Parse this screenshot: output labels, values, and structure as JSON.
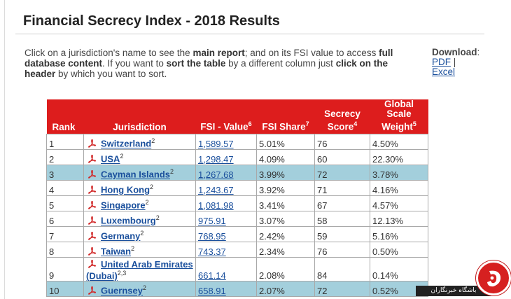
{
  "page": {
    "title": "Financial Secrecy Index - 2018 Results"
  },
  "intro": {
    "p1": "Click on a jurisdiction's name to see the ",
    "b1": "main report",
    "p2": "; and on its FSI value to access ",
    "b2": "full database content",
    "p3": ". If you want to ",
    "b3": "sort the table",
    "p4": " by a different column just ",
    "b4": "click on the header",
    "p5": " by which you want to sort."
  },
  "download": {
    "label": "Download",
    "pdf": "PDF",
    "sep": "|",
    "excel": "Excel"
  },
  "table": {
    "headers": {
      "rank": "Rank",
      "jurisdiction": "Jurisdiction",
      "fsi_value": "FSI - Value",
      "fsi_value_note": "6",
      "fsi_share": "FSI Share",
      "fsi_share_note": "7",
      "secrecy_score_1": "Secrecy",
      "secrecy_score_2": "Score",
      "secrecy_score_note": "4",
      "gsw_1": "Global",
      "gsw_2": "Scale",
      "gsw_3": "Weight",
      "gsw_note": "5"
    },
    "rows": [
      {
        "rank": "1",
        "name": "Switzerland",
        "note": "2",
        "fsi": "1,589.57",
        "share": "5.01%",
        "score": "76",
        "weight": "4.50%"
      },
      {
        "rank": "2",
        "name": "USA",
        "note": "2",
        "fsi": "1,298.47",
        "share": "4.09%",
        "score": "60",
        "weight": "22.30%"
      },
      {
        "rank": "3",
        "name": "Cayman Islands",
        "note": "2",
        "fsi": "1,267.68",
        "share": "3.99%",
        "score": "72",
        "weight": "3.78%"
      },
      {
        "rank": "4",
        "name": "Hong Kong",
        "note": "2",
        "fsi": "1,243.67",
        "share": "3.92%",
        "score": "71",
        "weight": "4.16%"
      },
      {
        "rank": "5",
        "name": "Singapore",
        "note": "2",
        "fsi": "1,081.98",
        "share": "3.41%",
        "score": "67",
        "weight": "4.57%"
      },
      {
        "rank": "6",
        "name": "Luxembourg",
        "note": "2",
        "fsi": "975.91",
        "share": "3.07%",
        "score": "58",
        "weight": "12.13%"
      },
      {
        "rank": "7",
        "name": "Germany",
        "note": "2",
        "fsi": "768.95",
        "share": "2.42%",
        "score": "59",
        "weight": "5.16%"
      },
      {
        "rank": "8",
        "name": "Taiwan",
        "note": "2",
        "fsi": "743.37",
        "share": "2.34%",
        "score": "76",
        "weight": "0.50%"
      },
      {
        "rank": "9",
        "name_line1": "United Arab Emirates",
        "name_line2": "(Dubai)",
        "note": "2,3",
        "fsi": "661.14",
        "share": "2.08%",
        "score": "84",
        "weight": "0.14%"
      },
      {
        "rank": "10",
        "name": "Guernsey",
        "note": "2",
        "fsi": "658.91",
        "share": "2.07%",
        "score": "72",
        "weight": "0.52%"
      }
    ]
  },
  "watermark": {
    "text": "باشگاه خبرنگاران"
  },
  "colors": {
    "header_red": "#dd1d1d",
    "highlight_row": "#a3cfdc",
    "link_blue": "#1a4f9c"
  },
  "icons": {
    "row_icon": "pdf-icon"
  }
}
